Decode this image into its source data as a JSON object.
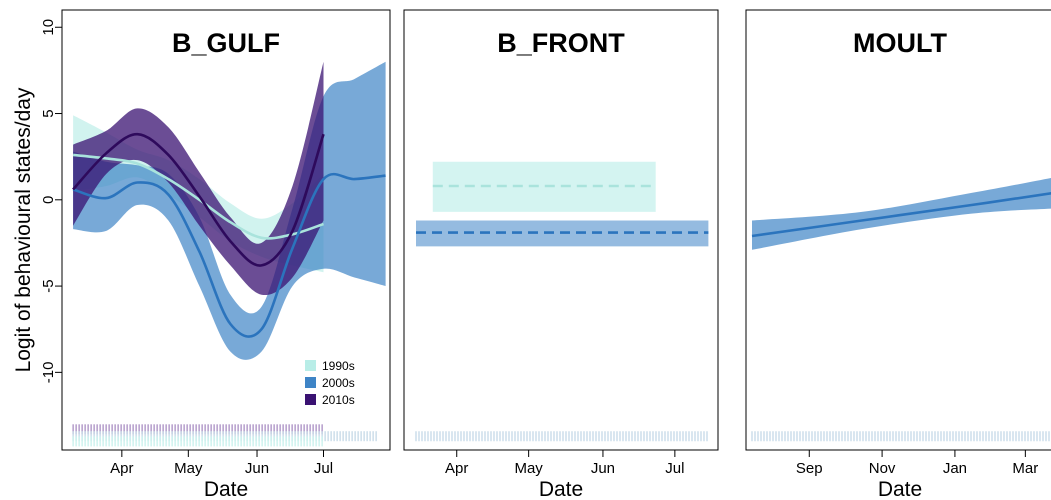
{
  "ylabel": "Logit of behavioural states/day",
  "ylim": [
    -14.5,
    11
  ],
  "yticks": [
    10,
    5,
    0,
    -5,
    -10
  ],
  "chart_data": [
    {
      "type": "line",
      "title": "B_GULF",
      "xlabel": "Date",
      "x_ticks": [
        "Apr",
        "May",
        "Jun",
        "Jul"
      ],
      "xlim": [
        "2000-03-05",
        "2000-07-31"
      ],
      "legend": {
        "placement": "bottom-right",
        "entries": [
          "1990s",
          "2000s",
          "2010s"
        ]
      },
      "series": [
        {
          "name": "1990s",
          "color": "#b8ede7",
          "band_opacity": 0.65,
          "line_dashed": false,
          "x": [
            "2000-03-10",
            "2000-03-25",
            "2000-04-08",
            "2000-04-22",
            "2000-05-06",
            "2000-05-20",
            "2000-06-03",
            "2000-06-17",
            "2000-07-01"
          ],
          "y": [
            2.6,
            2.4,
            2.1,
            1.2,
            0.0,
            -1.3,
            -2.2,
            -2.0,
            -1.4
          ],
          "lower": [
            0.5,
            0.8,
            1.3,
            0.3,
            -1.0,
            -2.4,
            -3.3,
            -3.8,
            -4.2
          ],
          "upper": [
            4.9,
            3.9,
            2.9,
            2.3,
            1.2,
            -0.2,
            -1.1,
            -0.2,
            1.5
          ]
        },
        {
          "name": "2000s",
          "color": "#3e84c6",
          "band_opacity": 0.7,
          "line_dashed": false,
          "x": [
            "2000-03-10",
            "2000-03-25",
            "2000-04-08",
            "2000-04-22",
            "2000-05-06",
            "2000-05-20",
            "2000-06-03",
            "2000-06-17",
            "2000-07-01",
            "2000-07-15",
            "2000-07-29"
          ],
          "y": [
            0.6,
            0.1,
            1.0,
            0.3,
            -3.0,
            -7.2,
            -7.5,
            -2.8,
            1.2,
            1.2,
            1.4
          ],
          "lower": [
            -1.7,
            -1.8,
            -0.3,
            -1.2,
            -5.0,
            -8.8,
            -8.8,
            -5.0,
            -4.0,
            -4.5,
            -5.0
          ],
          "upper": [
            2.8,
            2.2,
            2.0,
            1.5,
            -1.0,
            -5.5,
            -6.2,
            -0.5,
            6.0,
            7.0,
            8.0
          ]
        },
        {
          "name": "2010s",
          "color": "#3a1272",
          "band_opacity": 0.75,
          "line_dashed": false,
          "x": [
            "2000-03-10",
            "2000-03-25",
            "2000-04-08",
            "2000-04-22",
            "2000-05-06",
            "2000-05-20",
            "2000-06-03",
            "2000-06-17",
            "2000-07-01"
          ],
          "y": [
            0.6,
            2.7,
            3.8,
            2.6,
            0.2,
            -2.4,
            -3.8,
            -1.8,
            3.8
          ],
          "lower": [
            -1.5,
            1.5,
            2.3,
            1.0,
            -1.5,
            -3.8,
            -5.5,
            -4.5,
            -1.2
          ],
          "upper": [
            3.2,
            4.0,
            5.3,
            4.2,
            1.6,
            -1.0,
            -2.5,
            0.8,
            8.0
          ]
        }
      ],
      "rugs": [
        {
          "color": "#8f6bb0",
          "from": "2000-03-10",
          "to": "2000-07-01",
          "y": -13.3
        },
        {
          "color": "#b3cde0",
          "from": "2000-03-10",
          "to": "2000-07-26",
          "y": -13.7
        },
        {
          "color": "#b8ede7",
          "from": "2000-03-10",
          "to": "2000-07-01",
          "y": -14.0
        }
      ]
    },
    {
      "type": "line",
      "title": "B_FRONT",
      "xlabel": "Date",
      "x_ticks": [
        "Apr",
        "May",
        "Jun",
        "Jul"
      ],
      "xlim": [
        "2000-03-10",
        "2000-07-19"
      ],
      "series": [
        {
          "name": "1990s",
          "color": "#b8ede7",
          "band_opacity": 0.6,
          "line_dashed": true,
          "x": [
            "2000-03-22",
            "2000-06-23"
          ],
          "y": [
            0.8,
            0.8
          ],
          "lower": [
            -0.7,
            -0.7
          ],
          "upper": [
            2.2,
            2.2
          ]
        },
        {
          "name": "2000s",
          "color": "#3e84c6",
          "band_opacity": 0.55,
          "line_dashed": true,
          "x": [
            "2000-03-15",
            "2000-07-15"
          ],
          "y": [
            -1.9,
            -1.9
          ],
          "lower": [
            -2.7,
            -2.7
          ],
          "upper": [
            -1.2,
            -1.2
          ]
        }
      ],
      "rugs": [
        {
          "color": "#b3cde0",
          "from": "2000-03-15",
          "to": "2000-07-15",
          "y": -13.7
        }
      ]
    },
    {
      "type": "line",
      "title": "MOULT",
      "xlabel": "Date",
      "x_ticks": [
        "Sep",
        "Nov",
        "Jan",
        "Mar"
      ],
      "xlim": [
        "2000-07-10",
        "2001-03-25"
      ],
      "series": [
        {
          "name": "2000s",
          "color": "#3e84c6",
          "band_opacity": 0.7,
          "line_dashed": false,
          "x": [
            "2000-07-15",
            "2000-10-15",
            "2001-01-15",
            "2001-03-25"
          ],
          "y": [
            -2.1,
            -1.2,
            -0.3,
            0.4
          ],
          "lower": [
            -2.9,
            -1.7,
            -0.8,
            -0.5
          ],
          "upper": [
            -1.2,
            -0.7,
            0.4,
            1.3
          ]
        }
      ],
      "rugs": [
        {
          "color": "#b3cde0",
          "from": "2000-07-15",
          "to": "2001-03-25",
          "y": -13.7
        }
      ]
    }
  ]
}
